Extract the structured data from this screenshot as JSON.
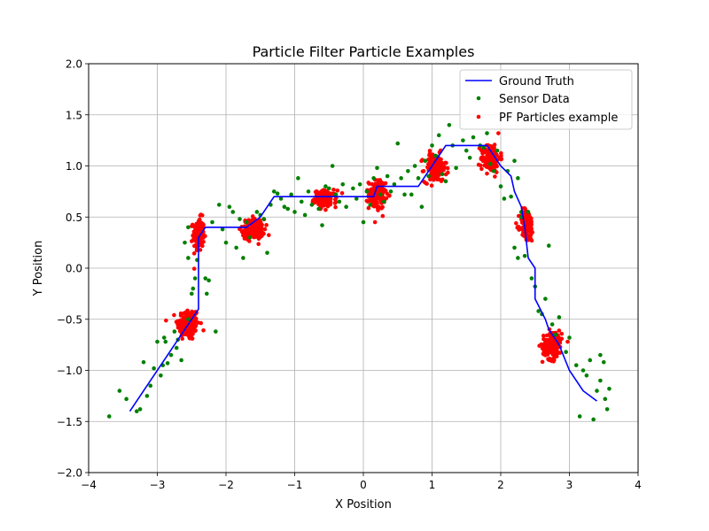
{
  "chart_data": {
    "type": "scatter",
    "title": "Particle Filter Particle Examples",
    "xlabel": "X Position",
    "ylabel": "Y Position",
    "xlim": [
      -4,
      4
    ],
    "ylim": [
      -2,
      2
    ],
    "xticks": [
      -4,
      -3,
      -2,
      -1,
      0,
      1,
      2,
      3,
      4
    ],
    "yticks": [
      -2.0,
      -1.5,
      -1.0,
      -0.5,
      0.0,
      0.5,
      1.0,
      1.5,
      2.0
    ],
    "xtick_labels": [
      "−4",
      "−3",
      "−2",
      "−1",
      "0",
      "1",
      "2",
      "3",
      "4"
    ],
    "ytick_labels": [
      "−2.0",
      "−1.5",
      "−1.0",
      "−0.5",
      "0.0",
      "0.5",
      "1.0",
      "1.5",
      "2.0"
    ],
    "grid": true,
    "legend_position": "top-right",
    "series": [
      {
        "name": "Ground Truth",
        "kind": "line",
        "color": "#0000ff",
        "points": [
          [
            -3.4,
            -1.4
          ],
          [
            -2.4,
            -0.4
          ],
          [
            -2.4,
            0.3
          ],
          [
            -2.3,
            0.4
          ],
          [
            -1.7,
            0.4
          ],
          [
            -1.5,
            0.5
          ],
          [
            -1.3,
            0.7
          ],
          [
            -0.3,
            0.7
          ],
          [
            0.15,
            0.7
          ],
          [
            0.2,
            0.8
          ],
          [
            0.8,
            0.8
          ],
          [
            1.0,
            1.0
          ],
          [
            1.2,
            1.2
          ],
          [
            1.8,
            1.2
          ],
          [
            2.0,
            1.0
          ],
          [
            2.15,
            0.9
          ],
          [
            2.2,
            0.75
          ],
          [
            2.3,
            0.6
          ],
          [
            2.35,
            0.4
          ],
          [
            2.4,
            0.1
          ],
          [
            2.5,
            0.0
          ],
          [
            2.5,
            -0.3
          ],
          [
            2.65,
            -0.5
          ],
          [
            2.7,
            -0.6
          ],
          [
            2.85,
            -0.75
          ],
          [
            3.0,
            -1.0
          ],
          [
            3.2,
            -1.2
          ],
          [
            3.4,
            -1.3
          ]
        ]
      },
      {
        "name": "Sensor Data",
        "kind": "scatter",
        "color": "#008000",
        "points": [
          [
            -3.7,
            -1.45
          ],
          [
            -3.55,
            -1.2
          ],
          [
            -3.45,
            -1.28
          ],
          [
            -3.3,
            -1.4
          ],
          [
            -3.25,
            -1.38
          ],
          [
            -3.2,
            -0.92
          ],
          [
            -3.15,
            -1.25
          ],
          [
            -3.1,
            -1.15
          ],
          [
            -3.05,
            -0.98
          ],
          [
            -3.0,
            -0.72
          ],
          [
            -2.95,
            -1.05
          ],
          [
            -2.92,
            -0.95
          ],
          [
            -2.9,
            -0.68
          ],
          [
            -2.88,
            -0.72
          ],
          [
            -2.85,
            -0.93
          ],
          [
            -2.8,
            -0.85
          ],
          [
            -2.75,
            -0.62
          ],
          [
            -2.72,
            -0.78
          ],
          [
            -2.7,
            -0.7
          ],
          [
            -2.65,
            -0.9
          ],
          [
            -2.55,
            -0.5
          ],
          [
            -2.5,
            -0.25
          ],
          [
            -2.48,
            -0.2
          ],
          [
            -2.45,
            -0.1
          ],
          [
            -2.42,
            0.08
          ],
          [
            -2.55,
            0.1
          ],
          [
            -2.6,
            0.25
          ],
          [
            -2.55,
            0.4
          ],
          [
            -2.3,
            -0.1
          ],
          [
            -2.28,
            -0.25
          ],
          [
            -2.25,
            -0.12
          ],
          [
            -2.2,
            0.45
          ],
          [
            -2.15,
            -0.62
          ],
          [
            -2.1,
            0.62
          ],
          [
            -2.05,
            0.38
          ],
          [
            -2.0,
            0.25
          ],
          [
            -1.95,
            0.6
          ],
          [
            -1.9,
            0.55
          ],
          [
            -1.85,
            0.2
          ],
          [
            -1.8,
            0.48
          ],
          [
            -1.75,
            0.1
          ],
          [
            -1.7,
            0.45
          ],
          [
            -1.65,
            0.3
          ],
          [
            -1.55,
            0.55
          ],
          [
            -1.5,
            0.52
          ],
          [
            -1.45,
            0.48
          ],
          [
            -1.4,
            0.15
          ],
          [
            -1.35,
            0.62
          ],
          [
            -1.3,
            0.75
          ],
          [
            -1.25,
            0.73
          ],
          [
            -1.2,
            0.68
          ],
          [
            -1.15,
            0.6
          ],
          [
            -1.1,
            0.58
          ],
          [
            -1.05,
            0.72
          ],
          [
            -1.0,
            0.55
          ],
          [
            -0.95,
            0.88
          ],
          [
            -0.9,
            0.65
          ],
          [
            -0.85,
            0.52
          ],
          [
            -0.8,
            0.75
          ],
          [
            -0.75,
            0.62
          ],
          [
            -0.65,
            0.58
          ],
          [
            -0.6,
            0.42
          ],
          [
            -0.55,
            0.8
          ],
          [
            -0.5,
            0.78
          ],
          [
            -0.45,
            1.0
          ],
          [
            -0.4,
            0.72
          ],
          [
            -0.35,
            0.65
          ],
          [
            -0.3,
            0.82
          ],
          [
            -0.25,
            0.6
          ],
          [
            -0.15,
            0.78
          ],
          [
            -0.1,
            0.68
          ],
          [
            -0.05,
            0.82
          ],
          [
            0.0,
            0.45
          ],
          [
            0.05,
            0.75
          ],
          [
            0.1,
            0.62
          ],
          [
            0.15,
            0.88
          ],
          [
            0.2,
            0.98
          ],
          [
            0.25,
            0.72
          ],
          [
            0.3,
            0.65
          ],
          [
            0.35,
            0.9
          ],
          [
            0.4,
            0.75
          ],
          [
            0.45,
            0.82
          ],
          [
            0.5,
            1.22
          ],
          [
            0.55,
            0.88
          ],
          [
            0.6,
            0.72
          ],
          [
            0.65,
            0.95
          ],
          [
            0.7,
            0.72
          ],
          [
            0.75,
            1.0
          ],
          [
            0.8,
            0.88
          ],
          [
            0.85,
            0.6
          ],
          [
            0.9,
            1.05
          ],
          [
            0.95,
            0.9
          ],
          [
            1.0,
            1.2
          ],
          [
            1.05,
            1.1
          ],
          [
            1.1,
            1.3
          ],
          [
            1.15,
            0.92
          ],
          [
            1.2,
            0.85
          ],
          [
            1.25,
            1.4
          ],
          [
            1.3,
            1.2
          ],
          [
            1.35,
            0.98
          ],
          [
            1.45,
            1.25
          ],
          [
            1.5,
            1.15
          ],
          [
            1.55,
            1.08
          ],
          [
            1.6,
            1.28
          ],
          [
            1.7,
            1.2
          ],
          [
            1.75,
            1.18
          ],
          [
            1.8,
            1.32
          ],
          [
            1.85,
            1.02
          ],
          [
            1.9,
            0.95
          ],
          [
            1.95,
            1.15
          ],
          [
            2.0,
            0.8
          ],
          [
            2.05,
            0.68
          ],
          [
            2.1,
            0.95
          ],
          [
            2.15,
            0.7
          ],
          [
            2.2,
            1.05
          ],
          [
            2.25,
            0.88
          ],
          [
            2.3,
            0.55
          ],
          [
            2.2,
            0.2
          ],
          [
            2.25,
            0.1
          ],
          [
            2.3,
            0.5
          ],
          [
            2.35,
            0.12
          ],
          [
            2.4,
            0.55
          ],
          [
            2.45,
            -0.1
          ],
          [
            2.5,
            -0.18
          ],
          [
            2.55,
            -0.42
          ],
          [
            2.6,
            -0.45
          ],
          [
            2.65,
            -0.3
          ],
          [
            2.7,
            0.22
          ],
          [
            2.75,
            -0.55
          ],
          [
            2.8,
            -0.65
          ],
          [
            2.85,
            -0.48
          ],
          [
            2.95,
            -0.82
          ],
          [
            3.0,
            -0.68
          ],
          [
            3.1,
            -0.95
          ],
          [
            3.15,
            -1.45
          ],
          [
            3.25,
            -1.05
          ],
          [
            3.3,
            -0.9
          ],
          [
            3.35,
            -1.48
          ],
          [
            3.4,
            -1.2
          ],
          [
            3.45,
            -1.1
          ],
          [
            3.5,
            -0.92
          ],
          [
            3.52,
            -1.28
          ],
          [
            3.55,
            -1.38
          ],
          [
            3.58,
            -1.18
          ],
          [
            3.45,
            -0.85
          ],
          [
            3.2,
            -1.0
          ]
        ]
      },
      {
        "name": "PF Particles example",
        "kind": "scatter",
        "color": "#ff0000",
        "clusters": [
          {
            "x": -2.55,
            "y": -0.55,
            "sx": 0.08,
            "sy": 0.08,
            "n": 160
          },
          {
            "x": -2.4,
            "y": 0.33,
            "sx": 0.04,
            "sy": 0.08,
            "n": 120
          },
          {
            "x": -1.6,
            "y": 0.38,
            "sx": 0.08,
            "sy": 0.05,
            "n": 140
          },
          {
            "x": -0.55,
            "y": 0.68,
            "sx": 0.08,
            "sy": 0.04,
            "n": 130
          },
          {
            "x": 0.2,
            "y": 0.72,
            "sx": 0.06,
            "sy": 0.07,
            "n": 140
          },
          {
            "x": 1.05,
            "y": 0.98,
            "sx": 0.08,
            "sy": 0.07,
            "n": 140
          },
          {
            "x": 1.85,
            "y": 1.08,
            "sx": 0.07,
            "sy": 0.07,
            "n": 140
          },
          {
            "x": 2.38,
            "y": 0.42,
            "sx": 0.05,
            "sy": 0.08,
            "n": 130
          },
          {
            "x": 2.75,
            "y": -0.75,
            "sx": 0.07,
            "sy": 0.07,
            "n": 150
          }
        ]
      }
    ]
  }
}
